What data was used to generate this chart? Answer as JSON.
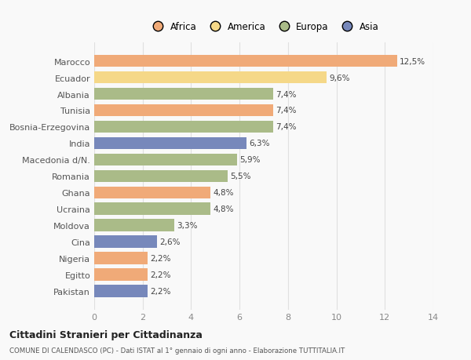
{
  "categories": [
    "Marocco",
    "Ecuador",
    "Albania",
    "Tunisia",
    "Bosnia-Erzegovina",
    "India",
    "Macedonia d/N.",
    "Romania",
    "Ghana",
    "Ucraina",
    "Moldova",
    "Cina",
    "Nigeria",
    "Egitto",
    "Pakistan"
  ],
  "values": [
    12.5,
    9.6,
    7.4,
    7.4,
    7.4,
    6.3,
    5.9,
    5.5,
    4.8,
    4.8,
    3.3,
    2.6,
    2.2,
    2.2,
    2.2
  ],
  "labels": [
    "12,5%",
    "9,6%",
    "7,4%",
    "7,4%",
    "7,4%",
    "6,3%",
    "5,9%",
    "5,5%",
    "4,8%",
    "4,8%",
    "3,3%",
    "2,6%",
    "2,2%",
    "2,2%",
    "2,2%"
  ],
  "continents": [
    "Africa",
    "America",
    "Europa",
    "Africa",
    "Europa",
    "Asia",
    "Europa",
    "Europa",
    "Africa",
    "Europa",
    "Europa",
    "Asia",
    "Africa",
    "Africa",
    "Asia"
  ],
  "continent_colors": {
    "Africa": "#F0AA78",
    "America": "#F5D888",
    "Europa": "#AABB88",
    "Asia": "#7788BB"
  },
  "legend_order": [
    "Africa",
    "America",
    "Europa",
    "Asia"
  ],
  "xlim": [
    0,
    14
  ],
  "xticks": [
    0,
    2,
    4,
    6,
    8,
    10,
    12,
    14
  ],
  "title": "Cittadini Stranieri per Cittadinanza",
  "subtitle": "COMUNE DI CALENDASCO (PC) - Dati ISTAT al 1° gennaio di ogni anno - Elaborazione TUTTITALIA.IT",
  "background_color": "#f9f9f9",
  "bar_height": 0.75,
  "grid_color": "#e0e0e0"
}
